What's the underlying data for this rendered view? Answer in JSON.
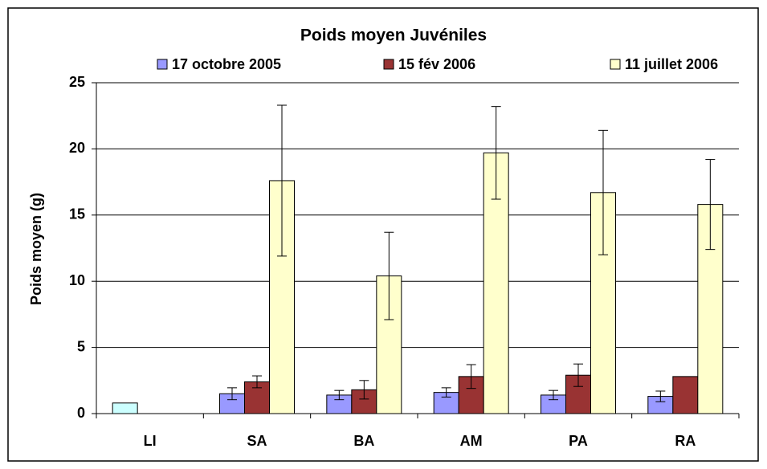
{
  "chart_data": {
    "type": "bar",
    "title": "Poids moyen Juvéniles",
    "y_label": "Poids moyen (g)",
    "categories": [
      "LI",
      "SA",
      "BA",
      "AM",
      "PA",
      "RA"
    ],
    "series": [
      {
        "name": "17 octobre 2005",
        "color": "#9999ff",
        "point_colors": [
          "#ccffff",
          "#9999ff",
          "#9999ff",
          "#9999ff",
          "#9999ff",
          "#9999ff"
        ],
        "values": [
          0.8,
          1.5,
          1.4,
          1.6,
          1.4,
          1.3
        ],
        "errors": [
          null,
          0.45,
          0.35,
          0.35,
          0.35,
          0.4
        ]
      },
      {
        "name": "15 fév 2006",
        "color": "#993333",
        "values": [
          null,
          2.4,
          1.8,
          2.8,
          2.9,
          2.8
        ],
        "errors": [
          null,
          0.45,
          0.7,
          0.9,
          0.85,
          null
        ]
      },
      {
        "name": "11 juillet 2006",
        "color": "#ffffcc",
        "values": [
          null,
          17.6,
          10.4,
          19.7,
          16.7,
          15.8
        ],
        "errors": [
          null,
          5.7,
          3.3,
          3.5,
          4.7,
          3.4
        ]
      }
    ],
    "ylim": [
      0,
      25
    ],
    "yticks": [
      0,
      5,
      10,
      15,
      20,
      25
    ],
    "grid": true,
    "legend": "top"
  }
}
